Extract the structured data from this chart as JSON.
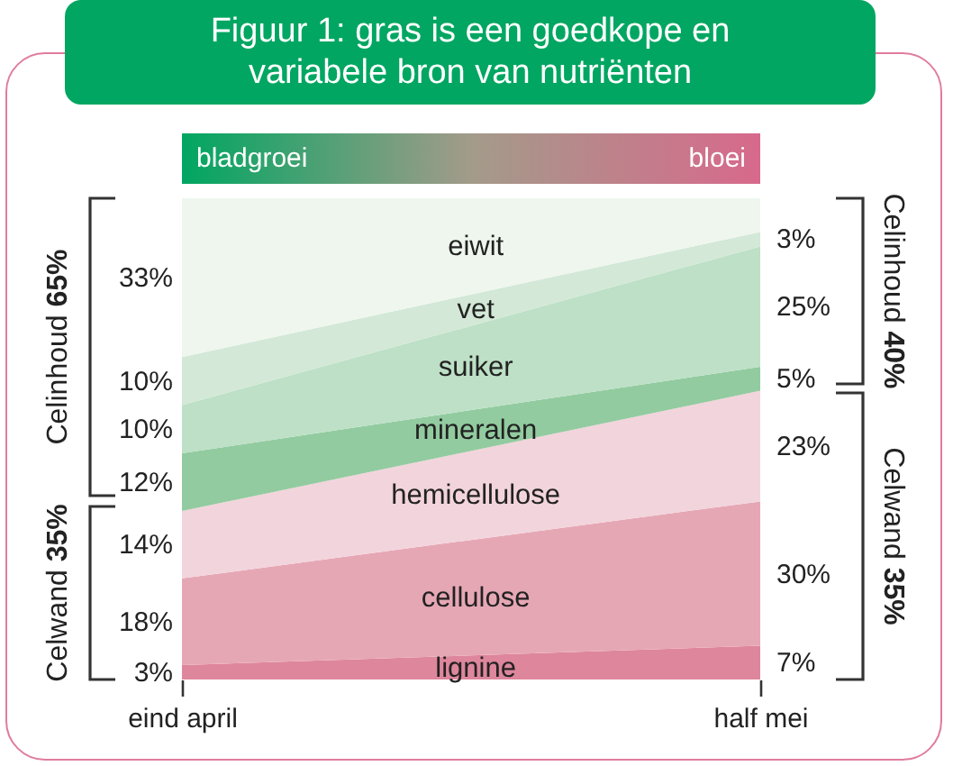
{
  "chart_data": {
    "type": "area",
    "stacked": true,
    "title": "Figuur 1: gras is een goedkope en variabele bron van nutriënten",
    "categories": [
      "eind april",
      "half mei"
    ],
    "series": [
      {
        "name": "lignine",
        "color": "#de869c",
        "values": [
          3,
          7
        ],
        "value_labels": [
          "3%",
          "7%"
        ]
      },
      {
        "name": "cellulose",
        "color": "#e6a7b5",
        "values": [
          18,
          30
        ],
        "value_labels": [
          "18%",
          "30%"
        ]
      },
      {
        "name": "hemicellulose",
        "color": "#f2d4dc",
        "values": [
          14,
          23
        ],
        "value_labels": [
          "14%",
          "23%"
        ]
      },
      {
        "name": "mineralen",
        "color": "#92cb9f",
        "values": [
          12,
          5
        ],
        "value_labels": [
          "12%",
          "5%"
        ]
      },
      {
        "name": "suiker",
        "color": "#bde0c6",
        "values": [
          10,
          25
        ],
        "value_labels": [
          "10%",
          "25%"
        ]
      },
      {
        "name": "vet",
        "color": "#d3e8d7",
        "values": [
          10,
          3
        ],
        "value_labels": [
          "10%",
          "3%"
        ]
      },
      {
        "name": "eiwit",
        "color": "#eef6ee",
        "values": [
          33,
          7
        ],
        "value_labels": [
          "33%",
          null
        ]
      }
    ],
    "annotations": [
      "bladgroei",
      "bloei",
      "Celinhoud 65%",
      "Celwand 35%",
      "Celinhoud 40%",
      "Celwand 35%"
    ],
    "tick_labels": "x"
  }
}
